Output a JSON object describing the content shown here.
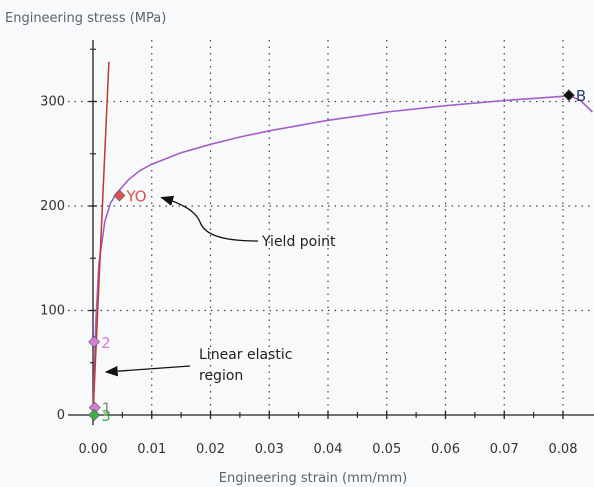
{
  "chart_data": {
    "type": "line",
    "title": "",
    "xlabel": "Engineering strain (mm/mm)",
    "ylabel": "Engineering stress (MPa)",
    "xlim": [
      -0.004,
      0.085
    ],
    "ylim": [
      -10,
      350
    ],
    "x_ticks": [
      0.0,
      0.01,
      0.02,
      0.03,
      0.04,
      0.05,
      0.06,
      0.07,
      0.08
    ],
    "x_tick_labels": [
      "0.00",
      "0.01",
      "0.02",
      "0.03",
      "0.04",
      "0.05",
      "0.06",
      "0.07",
      "0.08"
    ],
    "y_ticks": [
      0,
      100,
      200,
      300
    ],
    "y_tick_labels": [
      "0",
      "100",
      "200",
      "300"
    ],
    "grid": true,
    "colors": {
      "curve": "#a45fc7",
      "elastic_line": "#c0392b",
      "axis": "#222222",
      "grid": "#444444"
    },
    "series": [
      {
        "role": "stress-strain-curve",
        "x": [
          0.0,
          0.0002,
          0.0005,
          0.001,
          0.002,
          0.003,
          0.004,
          0.006,
          0.008,
          0.01,
          0.015,
          0.02,
          0.025,
          0.03,
          0.04,
          0.05,
          0.06,
          0.07,
          0.075,
          0.08,
          0.081,
          0.083,
          0.085
        ],
        "y": [
          0,
          40,
          90,
          145,
          185,
          203,
          212,
          225,
          234,
          240,
          251,
          259,
          266,
          272,
          282,
          290,
          296,
          301,
          303,
          305,
          306,
          301,
          290
        ]
      },
      {
        "role": "elastic-line",
        "x": [
          0.0,
          0.0027
        ],
        "y": [
          0,
          338
        ]
      }
    ],
    "markers": [
      {
        "label": "YO",
        "x": 0.0045,
        "y": 210,
        "color": "#d9534f",
        "label_color": "#d9534f"
      },
      {
        "label": "B",
        "x": 0.081,
        "y": 306,
        "color": "#111111",
        "label_color": "#2a3d7a"
      },
      {
        "label": "2",
        "x": 0.0002,
        "y": 70,
        "color": "#d67bd6",
        "label_color": "#d67bd6"
      },
      {
        "label": "1",
        "x": 0.0003,
        "y": 7,
        "color": "#d67bd6",
        "label_color": "#8a8a8a"
      },
      {
        "label": "3",
        "x": 0.0002,
        "y": 0,
        "color": "#3fae49",
        "label_color": "#3fae49"
      }
    ],
    "annotations": [
      {
        "text": "Yield point",
        "target": "YO"
      },
      {
        "text_lines": [
          "Linear elastic",
          "region"
        ],
        "target": "elastic-region"
      }
    ]
  }
}
